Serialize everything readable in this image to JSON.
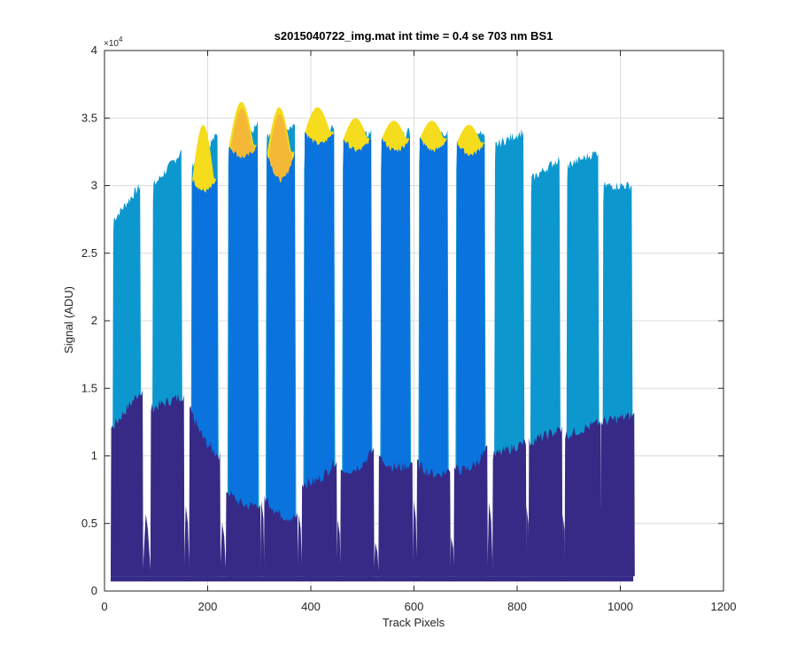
{
  "chart_data": {
    "type": "area",
    "title": "s2015040722_img.mat int time = 0.4 se  703 nm BS1",
    "xlabel": "Track Pixels",
    "ylabel": "Signal (ADU)",
    "exponent_label": "×10",
    "exponent_power": "4",
    "xlim": [
      0,
      1200
    ],
    "ylim": [
      0,
      40000
    ],
    "x_ticks": [
      "0",
      "200",
      "400",
      "600",
      "800",
      "1000",
      "1200"
    ],
    "y_ticks": [
      "0",
      "0.5",
      "1",
      "1.5",
      "2",
      "2.5",
      "3",
      "3.5",
      "4"
    ],
    "x_tick_values": [
      0,
      200,
      400,
      600,
      800,
      1000,
      1200
    ],
    "y_tick_values": [
      0,
      5000,
      10000,
      15000,
      20000,
      25000,
      30000,
      35000,
      40000
    ],
    "grid": true,
    "baseline": 1100,
    "colors": {
      "cyan": "#0d97cf",
      "mid": "#0a73dd",
      "dark": "#362a86",
      "yellow": "#f5dc1c",
      "orange": "#f5b836"
    },
    "bands": [
      {
        "x_start": 15,
        "x_end": 72,
        "cyan_left": 27500,
        "cyan_right": 30000,
        "mid_peak": 0,
        "yellow_peak": 0,
        "dark_left": 12000,
        "dark_right": 15000
      },
      {
        "x_start": 92,
        "x_end": 152,
        "cyan_left": 30000,
        "cyan_right": 32500,
        "mid_peak": 0,
        "yellow_peak": 0,
        "dark_left": 13500,
        "dark_right": 14500
      },
      {
        "x_start": 167,
        "x_end": 222,
        "cyan_left": 31500,
        "cyan_right": 33800,
        "mid_peak": 30500,
        "yellow_peak": 34500,
        "dark_left": 13500,
        "dark_right": 10000
      },
      {
        "x_start": 238,
        "x_end": 300,
        "cyan_left": 33000,
        "cyan_right": 34500,
        "mid_peak": 33000,
        "yellow_peak": 36200,
        "dark_left": 7500,
        "dark_right": 6500
      },
      {
        "x_start": 312,
        "x_end": 372,
        "cyan_left": 33500,
        "cyan_right": 34500,
        "mid_peak": 32500,
        "yellow_peak": 35800,
        "dark_left": 7000,
        "dark_right": 5500
      },
      {
        "x_start": 385,
        "x_end": 448,
        "cyan_left": 32500,
        "cyan_right": 34500,
        "mid_peak": 34000,
        "yellow_peak": 35800,
        "dark_left": 8000,
        "dark_right": 9800
      },
      {
        "x_start": 460,
        "x_end": 520,
        "cyan_left": 32500,
        "cyan_right": 34000,
        "mid_peak": 33500,
        "yellow_peak": 35000,
        "dark_left": 9000,
        "dark_right": 10500
      },
      {
        "x_start": 534,
        "x_end": 595,
        "cyan_left": 32500,
        "cyan_right": 34000,
        "mid_peak": 33500,
        "yellow_peak": 34800,
        "dark_left": 10000,
        "dark_right": 9500
      },
      {
        "x_start": 608,
        "x_end": 668,
        "cyan_left": 33000,
        "cyan_right": 34000,
        "mid_peak": 33500,
        "yellow_peak": 34800,
        "dark_left": 9500,
        "dark_right": 9000
      },
      {
        "x_start": 680,
        "x_end": 740,
        "cyan_left": 32500,
        "cyan_right": 34000,
        "mid_peak": 33200,
        "yellow_peak": 34500,
        "dark_left": 9000,
        "dark_right": 10500
      },
      {
        "x_start": 755,
        "x_end": 815,
        "cyan_left": 33000,
        "cyan_right": 34000,
        "mid_peak": 0,
        "yellow_peak": 0,
        "dark_left": 10000,
        "dark_right": 11000
      },
      {
        "x_start": 825,
        "x_end": 885,
        "cyan_left": 30500,
        "cyan_right": 32000,
        "mid_peak": 0,
        "yellow_peak": 0,
        "dark_left": 11000,
        "dark_right": 12000
      },
      {
        "x_start": 895,
        "x_end": 960,
        "cyan_left": 31500,
        "cyan_right": 32500,
        "mid_peak": 0,
        "yellow_peak": 0,
        "dark_left": 11500,
        "dark_right": 12500
      },
      {
        "x_start": 965,
        "x_end": 1025,
        "cyan_left": 30000,
        "cyan_right": 30000,
        "mid_peak": 0,
        "yellow_peak": 0,
        "dark_left": 12500,
        "dark_right": 13000
      }
    ]
  }
}
